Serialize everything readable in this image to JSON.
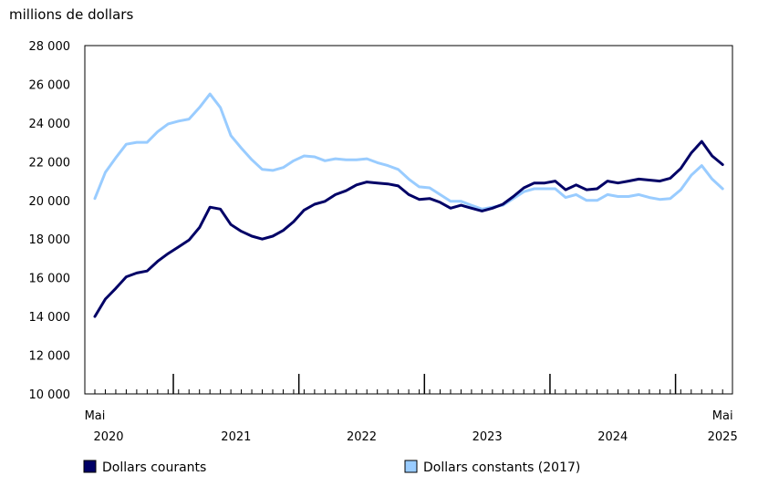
{
  "chart_data": {
    "type": "line",
    "title": "",
    "ylabel": "millions de dollars",
    "xlabel": "",
    "ylim": [
      10000,
      28000
    ],
    "yticks": [
      10000,
      12000,
      14000,
      16000,
      18000,
      20000,
      22000,
      24000,
      26000,
      28000
    ],
    "ytick_labels": [
      "10 000",
      "12 000",
      "14 000",
      "16 000",
      "18 000",
      "20 000",
      "22 000",
      "24 000",
      "26 000",
      "28 000"
    ],
    "x_start": "2020-05",
    "x_end": "2025-05",
    "year_labels": [
      "2020",
      "2021",
      "2022",
      "2023",
      "2024",
      "2025"
    ],
    "month_labels": [
      {
        "label": "Mai",
        "month_index": 0
      },
      {
        "label": "Mai",
        "month_index": 60
      }
    ],
    "grid": false,
    "legend_position": "bottom",
    "series": [
      {
        "name": "Dollars courants",
        "color": "#000066",
        "values": [
          14000,
          14900,
          15450,
          16050,
          16250,
          16350,
          16850,
          17250,
          17600,
          17950,
          18600,
          19650,
          19550,
          18750,
          18400,
          18150,
          18000,
          18150,
          18450,
          18900,
          19500,
          19800,
          19950,
          20300,
          20500,
          20800,
          20950,
          20900,
          20850,
          20750,
          20300,
          20050,
          20100,
          19900,
          19600,
          19750,
          19600,
          19450,
          19600,
          19800,
          20200,
          20650,
          20900,
          20900,
          21000,
          20550,
          20800,
          20550,
          20600,
          21000,
          20900,
          21000,
          21100,
          21050,
          21000,
          21150,
          21650,
          22450,
          23050,
          22300,
          21850
        ]
      },
      {
        "name": "Dollars constants (2017)",
        "color": "#99ccff",
        "values": [
          20100,
          21450,
          22200,
          22900,
          23000,
          23000,
          23550,
          23950,
          24100,
          24200,
          24800,
          25500,
          24800,
          23350,
          22700,
          22100,
          21600,
          21550,
          21700,
          22050,
          22300,
          22250,
          22050,
          22150,
          22100,
          22100,
          22150,
          21950,
          21800,
          21600,
          21100,
          20700,
          20650,
          20300,
          19950,
          19950,
          19750,
          19550,
          19650,
          19750,
          20100,
          20450,
          20600,
          20600,
          20600,
          20150,
          20300,
          20000,
          20000,
          20300,
          20200,
          20200,
          20300,
          20150,
          20050,
          20100,
          20550,
          21300,
          21800,
          21100,
          20600
        ]
      }
    ]
  }
}
